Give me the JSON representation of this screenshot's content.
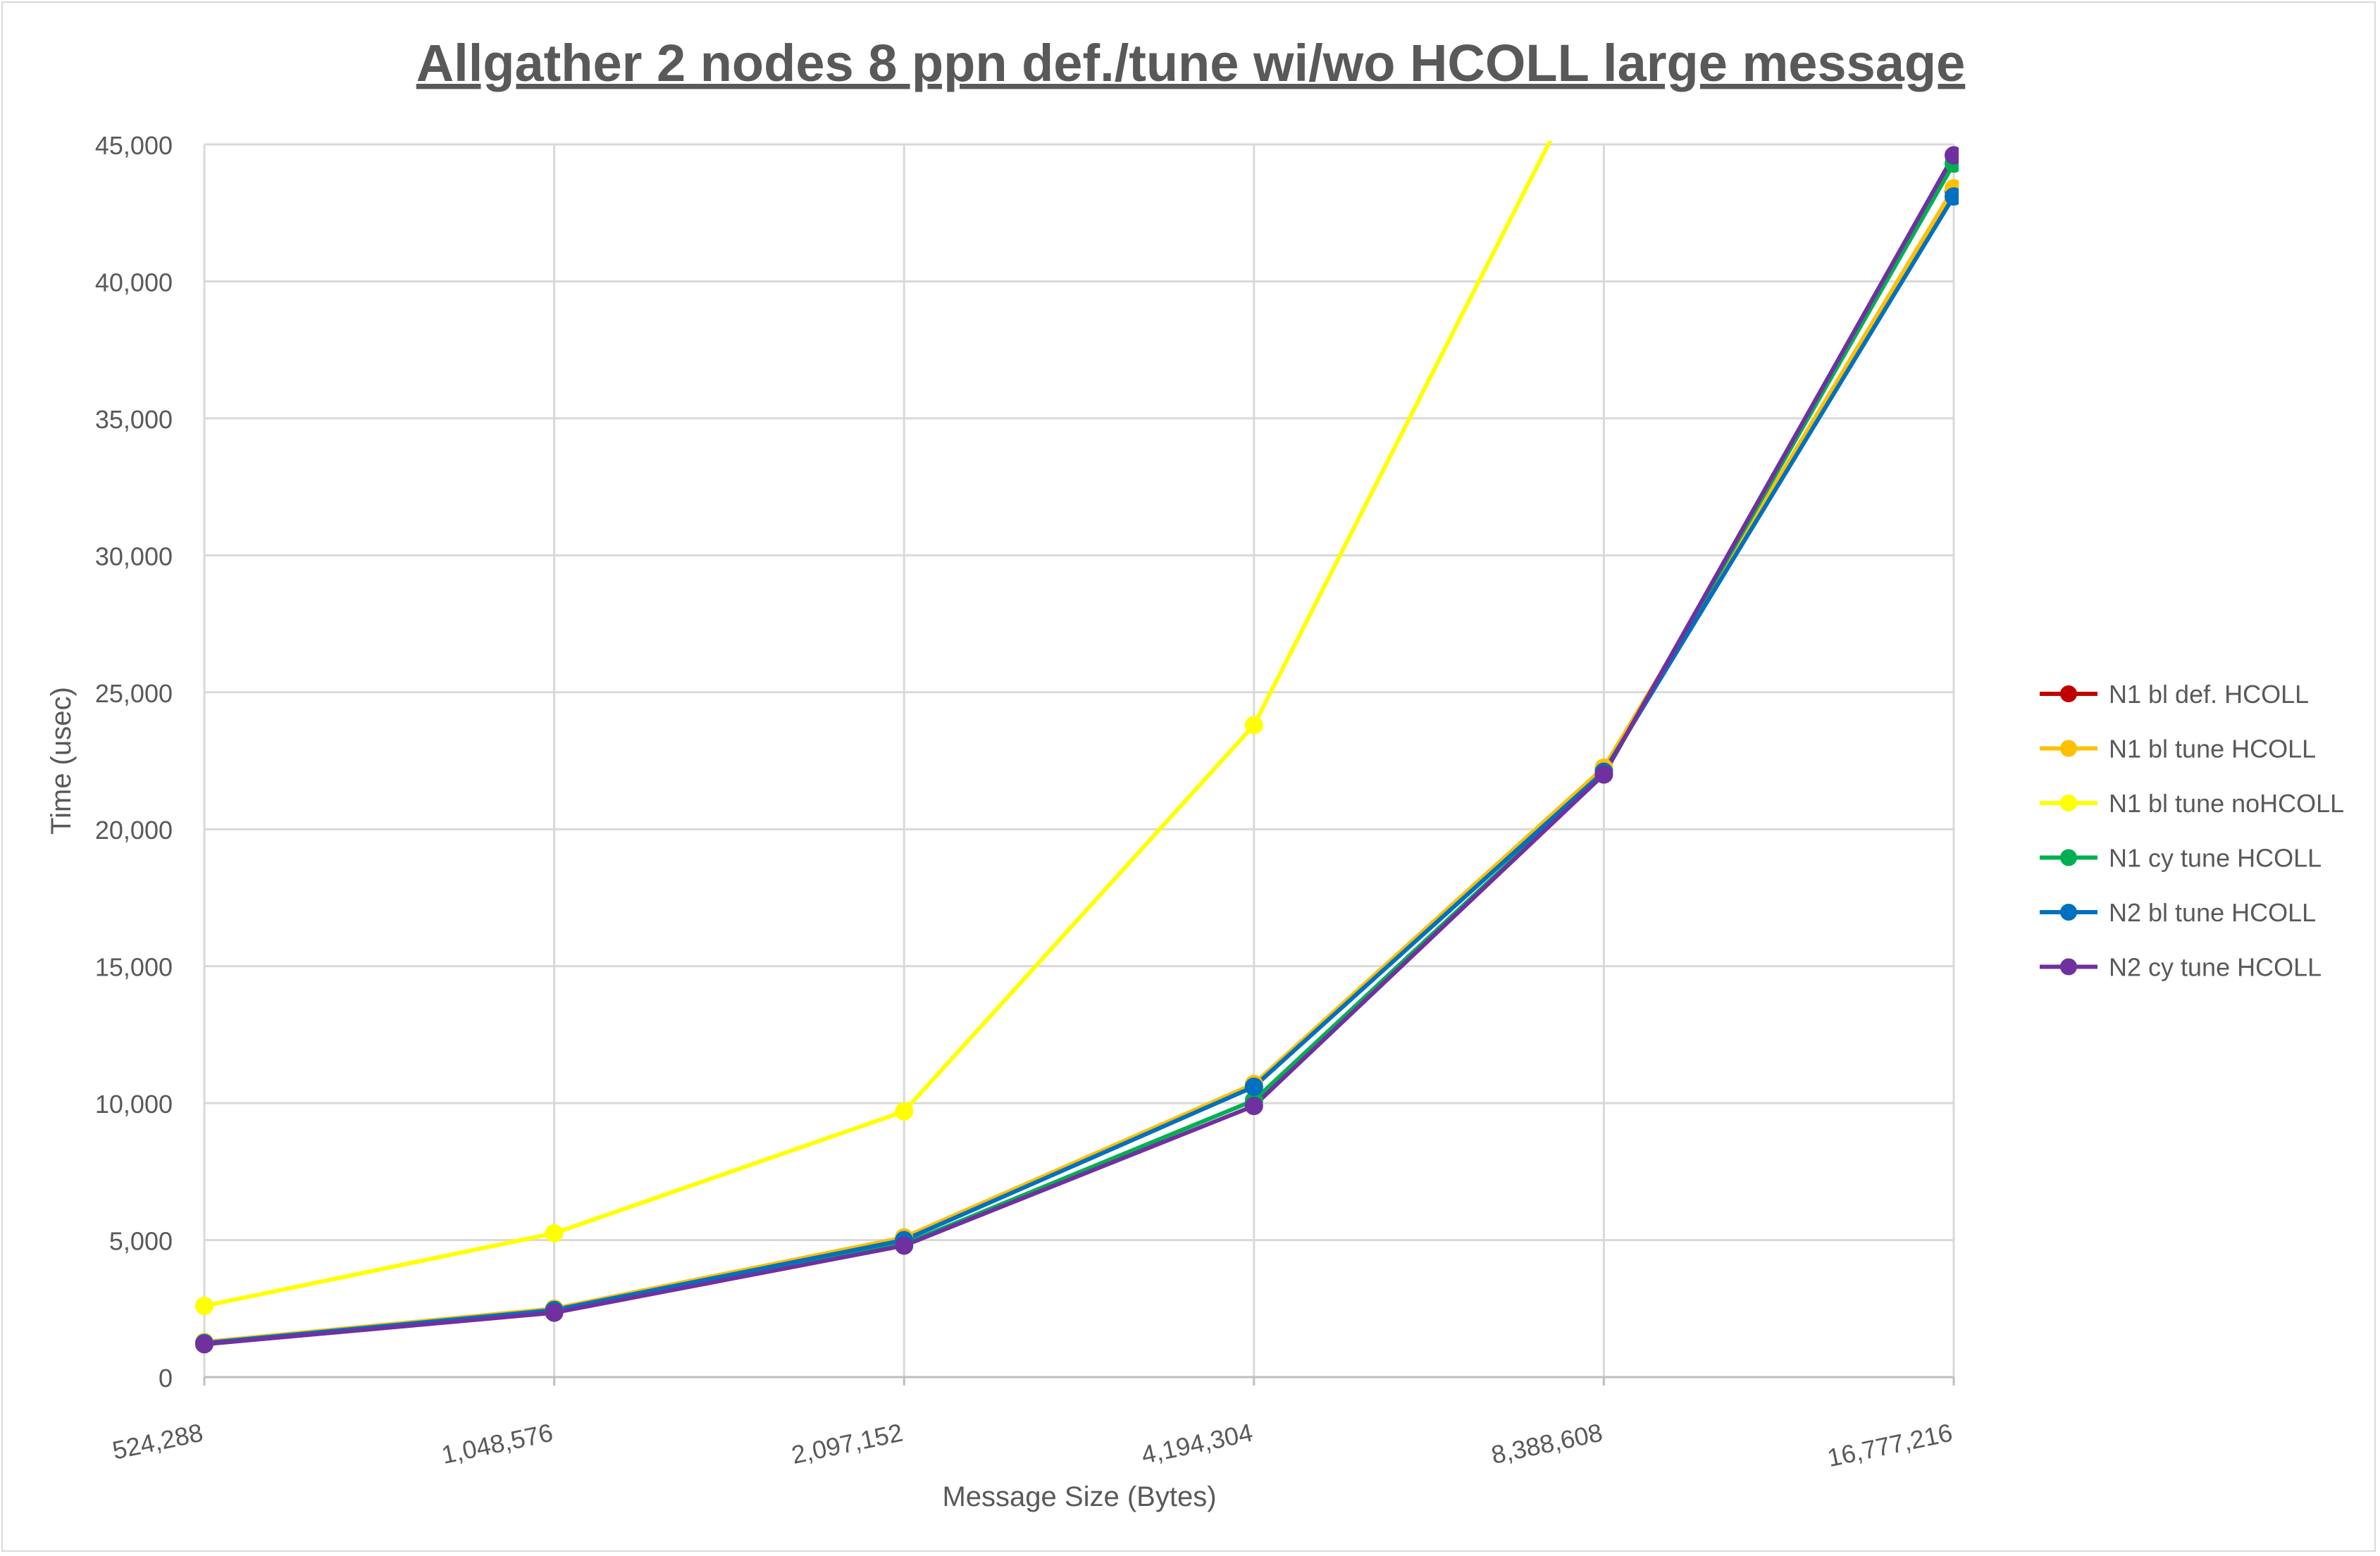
{
  "chart_data": {
    "type": "line",
    "title": "Allgather 2 nodes 8 ppn def./tune wi/wo HCOLL large message",
    "xlabel": "Message Size (Bytes)",
    "ylabel": "Time (usec)",
    "x_scale": "log2",
    "categories": [
      "524,288",
      "1,048,576",
      "2,097,152",
      "4,194,304",
      "8,388,608",
      "16,777,216"
    ],
    "x": [
      524288,
      1048576,
      2097152,
      4194304,
      8388608,
      16777216
    ],
    "ylim": [
      0,
      45000
    ],
    "yticks": [
      0,
      5000,
      10000,
      15000,
      20000,
      25000,
      30000,
      35000,
      40000,
      45000
    ],
    "ytick_labels": [
      "0",
      "5,000",
      "10,000",
      "15,000",
      "20,000",
      "25,000",
      "30,000",
      "35,000",
      "40,000",
      "45,000"
    ],
    "grid": true,
    "legend_position": "right",
    "series": [
      {
        "name": "N1 bl def. HCOLL",
        "color": "#c00000",
        "values": [
          1250,
          2450,
          5050,
          10600,
          22200,
          43300
        ]
      },
      {
        "name": "N1 bl tune HCOLL",
        "color": "#ffc000",
        "values": [
          1280,
          2500,
          5100,
          10700,
          22250,
          43400
        ]
      },
      {
        "name": "N1 bl tune noHCOLL",
        "color": "#ffff00",
        "values": [
          2600,
          5250,
          9700,
          23800,
          49000,
          null
        ]
      },
      {
        "name": "N1 cy tune HCOLL",
        "color": "#00b050",
        "values": [
          1220,
          2400,
          4850,
          10100,
          22000,
          44300
        ]
      },
      {
        "name": "N2 bl tune HCOLL",
        "color": "#0070c0",
        "values": [
          1240,
          2450,
          5000,
          10600,
          22100,
          43100
        ]
      },
      {
        "name": "N2 cy tune HCOLL",
        "color": "#7030a0",
        "values": [
          1200,
          2350,
          4800,
          9900,
          22000,
          44600
        ]
      }
    ]
  }
}
